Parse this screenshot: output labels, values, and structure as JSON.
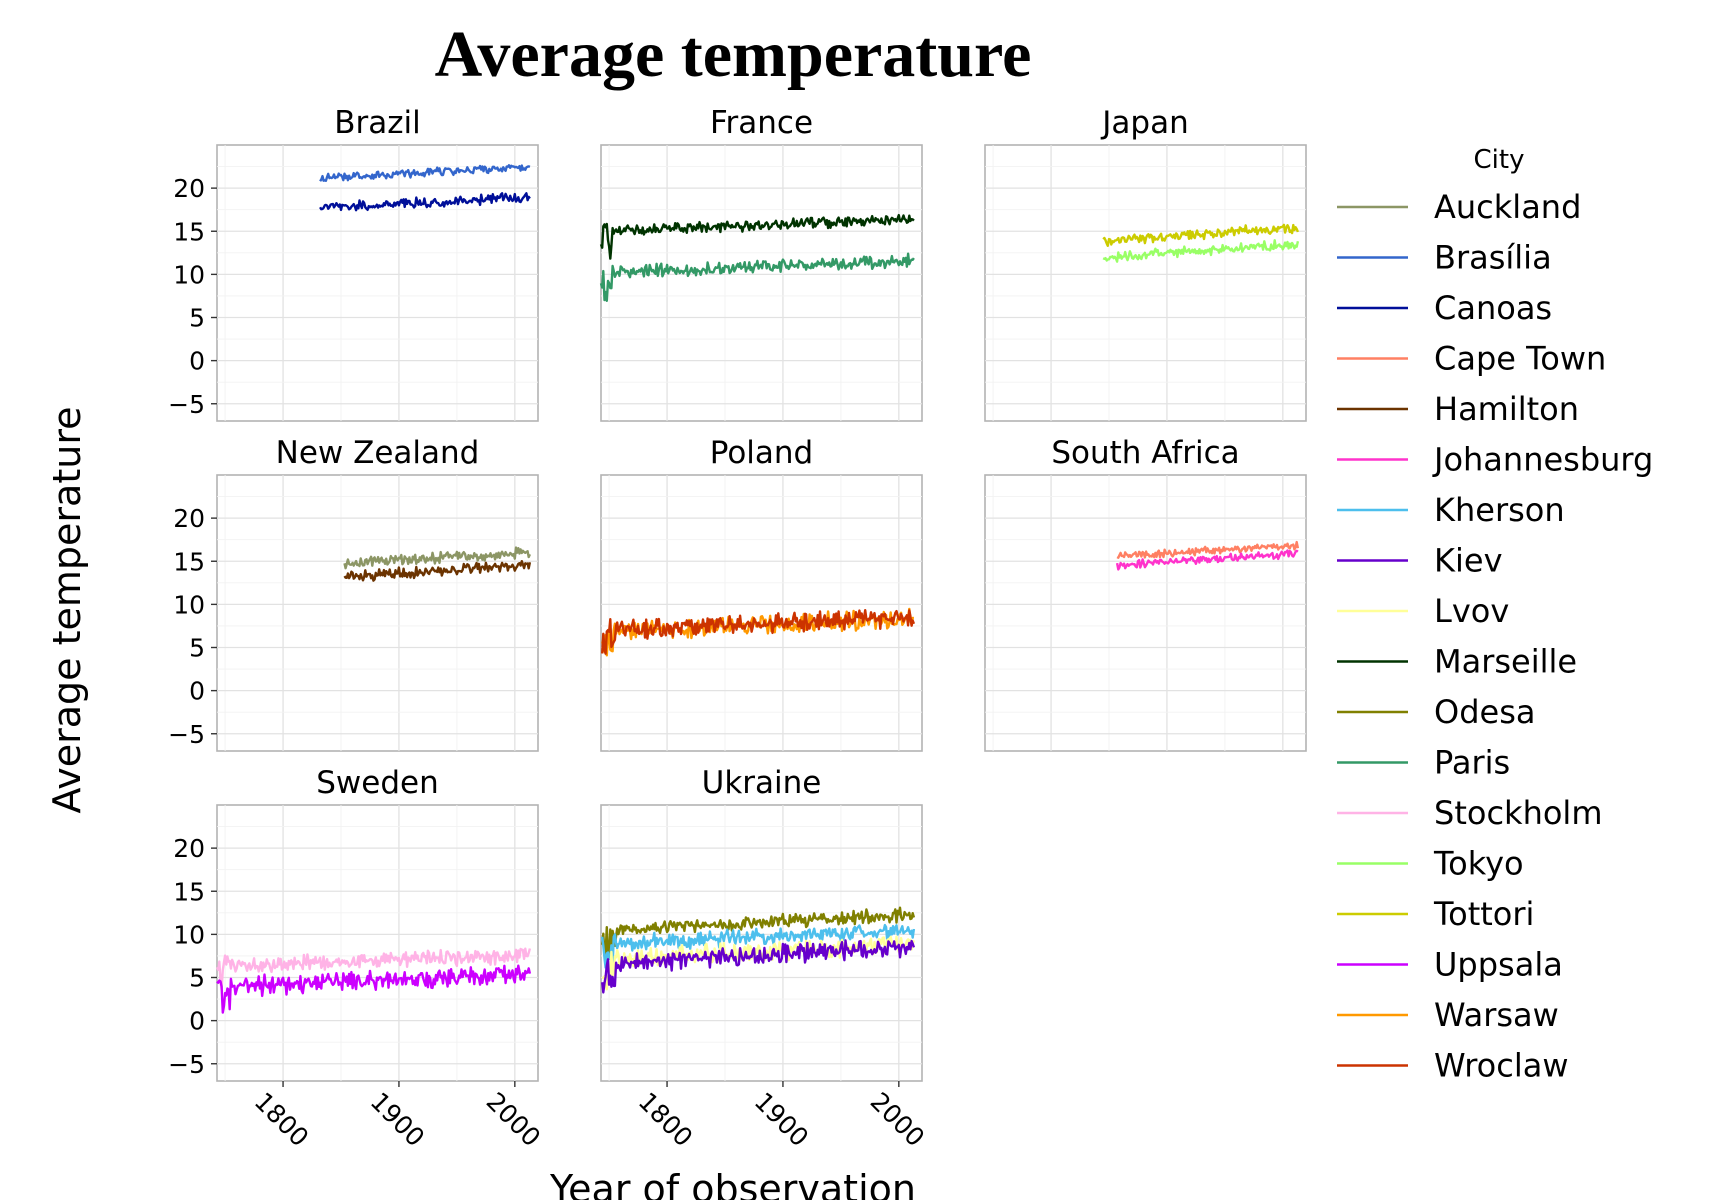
{
  "chart_data": {
    "type": "line",
    "title": "Average temperature",
    "xlabel": "Year of observation",
    "ylabel": "Average temperature",
    "legend_title": "City",
    "legend_position": "right",
    "grid": true,
    "facets_layout": "3 columns, shared axes",
    "xlim": [
      1743,
      2020
    ],
    "ylim": [
      -7,
      25
    ],
    "x_ticks": [
      1800,
      1900,
      2000
    ],
    "y_ticks": [
      -5,
      0,
      5,
      10,
      15,
      20
    ],
    "facets": [
      {
        "title": "Brazil",
        "cities": [
          "Brasília",
          "Canoas"
        ]
      },
      {
        "title": "France",
        "cities": [
          "Marseille",
          "Paris"
        ]
      },
      {
        "title": "Japan",
        "cities": [
          "Tottori",
          "Tokyo"
        ]
      },
      {
        "title": "New Zealand",
        "cities": [
          "Auckland",
          "Hamilton"
        ]
      },
      {
        "title": "Poland",
        "cities": [
          "Warsaw",
          "Wroclaw"
        ]
      },
      {
        "title": "South Africa",
        "cities": [
          "Cape Town",
          "Johannesburg"
        ]
      },
      {
        "title": "Sweden",
        "cities": [
          "Stockholm",
          "Uppsala"
        ]
      },
      {
        "title": "Ukraine",
        "cities": [
          "Odesa",
          "Kherson",
          "Lvov",
          "Kiev"
        ]
      }
    ],
    "series": [
      {
        "name": "Auckland",
        "color": "#8c9665",
        "start": 1853,
        "end": 2013,
        "mean_start": 14.8,
        "mean_end": 16.0,
        "noise": 0.45
      },
      {
        "name": "Brasília",
        "color": "#3366cc",
        "start": 1832,
        "end": 2013,
        "mean_start": 21.1,
        "mean_end": 22.5,
        "noise": 0.35
      },
      {
        "name": "Canoas",
        "color": "#000f99",
        "start": 1832,
        "end": 2013,
        "mean_start": 17.7,
        "mean_end": 18.9,
        "noise": 0.45
      },
      {
        "name": "Cape Town",
        "color": "#ff8063",
        "start": 1857,
        "end": 2013,
        "mean_start": 15.6,
        "mean_end": 16.8,
        "noise": 0.35
      },
      {
        "name": "Hamilton",
        "color": "#6b3300",
        "start": 1853,
        "end": 2013,
        "mean_start": 13.2,
        "mean_end": 14.6,
        "noise": 0.45
      },
      {
        "name": "Johannesburg",
        "color": "#ff33cc",
        "start": 1857,
        "end": 2013,
        "mean_start": 14.5,
        "mean_end": 15.9,
        "noise": 0.35
      },
      {
        "name": "Kherson",
        "color": "#4dbfed",
        "start": 1744,
        "end": 2013,
        "mean_start": 8.8,
        "mean_end": 10.5,
        "noise": 0.7
      },
      {
        "name": "Kiev",
        "color": "#6600cc",
        "start": 1744,
        "end": 2013,
        "mean_start": 6.6,
        "mean_end": 8.6,
        "noise": 0.8
      },
      {
        "name": "Lvov",
        "color": "#ffff99",
        "start": 1744,
        "end": 2013,
        "mean_start": 7.1,
        "mean_end": 8.9,
        "noise": 0.8
      },
      {
        "name": "Marseille",
        "color": "#003300",
        "start": 1743,
        "end": 2013,
        "mean_start": 15.0,
        "mean_end": 16.4,
        "noise": 0.45
      },
      {
        "name": "Odesa",
        "color": "#808000",
        "start": 1744,
        "end": 2013,
        "mean_start": 10.4,
        "mean_end": 12.3,
        "noise": 0.6
      },
      {
        "name": "Paris",
        "color": "#339966",
        "start": 1743,
        "end": 2013,
        "mean_start": 10.2,
        "mean_end": 11.6,
        "noise": 0.55
      },
      {
        "name": "Stockholm",
        "color": "#ffb3e6",
        "start": 1743,
        "end": 2013,
        "mean_start": 6.4,
        "mean_end": 7.6,
        "noise": 0.7
      },
      {
        "name": "Tokyo",
        "color": "#99ff66",
        "start": 1845,
        "end": 2013,
        "mean_start": 11.9,
        "mean_end": 13.5,
        "noise": 0.45
      },
      {
        "name": "Tottori",
        "color": "#cccc00",
        "start": 1845,
        "end": 2013,
        "mean_start": 13.9,
        "mean_end": 15.4,
        "noise": 0.45
      },
      {
        "name": "Uppsala",
        "color": "#cc00ff",
        "start": 1743,
        "end": 2013,
        "mean_start": 3.9,
        "mean_end": 5.4,
        "noise": 0.8
      },
      {
        "name": "Warsaw",
        "color": "#ff9900",
        "start": 1744,
        "end": 2013,
        "mean_start": 6.8,
        "mean_end": 8.4,
        "noise": 0.8
      },
      {
        "name": "Wroclaw",
        "color": "#cc3300",
        "start": 1744,
        "end": 2013,
        "mean_start": 7.0,
        "mean_end": 8.5,
        "noise": 0.8
      }
    ]
  }
}
